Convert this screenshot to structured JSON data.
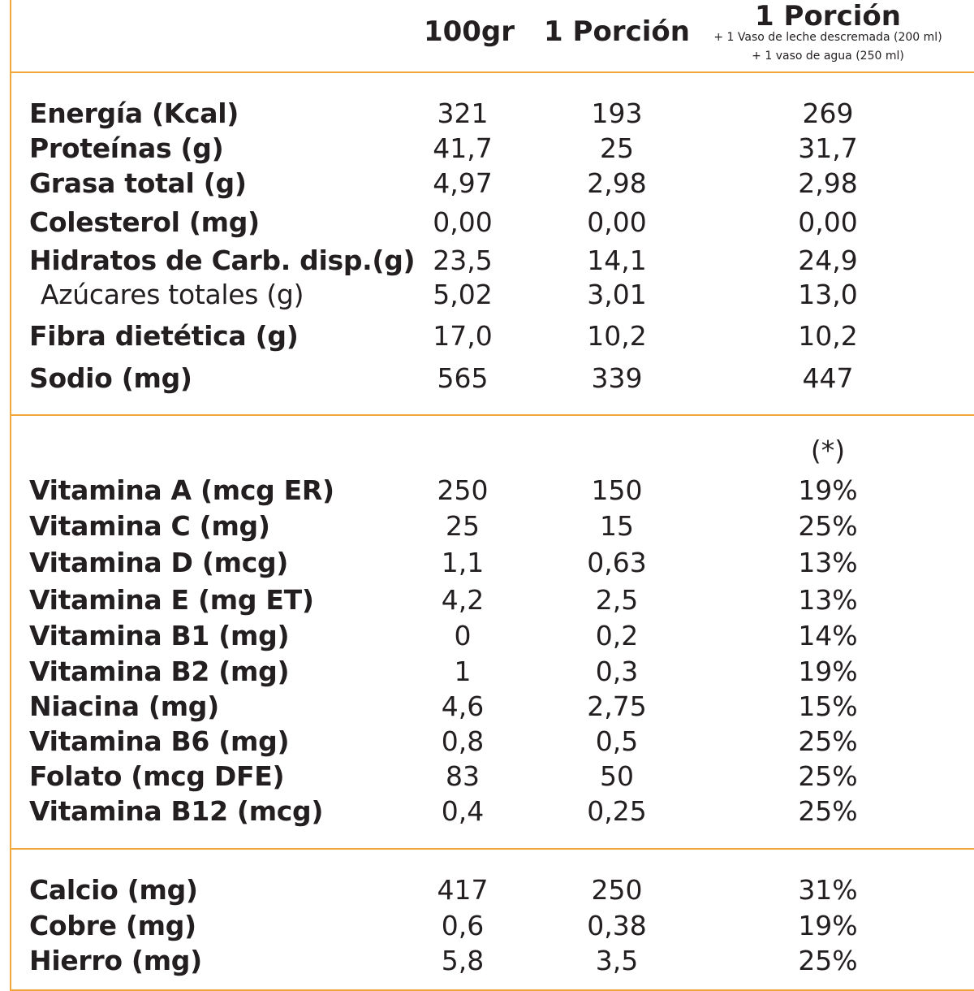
{
  "header": {
    "col1": "100gr",
    "col2": "1 Porción",
    "col3": "1 Porción",
    "col3_note1": "+ 1 Vaso de leche descremada (200 ml)",
    "col3_note2": "+ 1 vaso de agua (250 ml)"
  },
  "colors": {
    "accent": "#f2a73b",
    "text": "#231f20"
  },
  "macros": [
    {
      "label": "Energía (Kcal)",
      "v100": "321",
      "vpor": "193",
      "vmix": "269"
    },
    {
      "label": "Proteínas (g)",
      "v100": "41,7",
      "vpor": "25",
      "vmix": "31,7"
    },
    {
      "label": "Grasa total (g)",
      "v100": "4,97",
      "vpor": "2,98",
      "vmix": "2,98"
    },
    {
      "label": "Colesterol (mg)",
      "v100": "0,00",
      "vpor": "0,00",
      "vmix": "0,00"
    },
    {
      "label": "Hidratos de Carb. disp.(g)",
      "v100": "23,5",
      "vpor": "14,1",
      "vmix": "24,9"
    },
    {
      "label": "Azúcares totales (g)",
      "v100": "5,02",
      "vpor": "3,01",
      "vmix": "13,0"
    },
    {
      "label": "Fibra dietética (g)",
      "v100": "17,0",
      "vpor": "10,2",
      "vmix": "10,2"
    },
    {
      "label": "Sodio (mg)",
      "v100": "565",
      "vpor": "339",
      "vmix": "447"
    }
  ],
  "vitamins_note": "(*)",
  "vitamins": [
    {
      "label": "Vitamina A (mcg ER)",
      "v100": "250",
      "vpor": "150",
      "vmix": "19%"
    },
    {
      "label": "Vitamina C (mg)",
      "v100": "25",
      "vpor": "15",
      "vmix": "25%"
    },
    {
      "label": "Vitamina D (mcg)",
      "v100": "1,1",
      "vpor": "0,63",
      "vmix": "13%"
    },
    {
      "label": "Vitamina E (mg ET)",
      "v100": "4,2",
      "vpor": "2,5",
      "vmix": "13%"
    },
    {
      "label": "Vitamina B1 (mg)",
      "v100": "0",
      "vpor": "0,2",
      "vmix": "14%"
    },
    {
      "label": "Vitamina B2 (mg)",
      "v100": "1",
      "vpor": "0,3",
      "vmix": "19%"
    },
    {
      "label": "Niacina (mg)",
      "v100": "4,6",
      "vpor": "2,75",
      "vmix": "15%"
    },
    {
      "label": "Vitamina B6 (mg)",
      "v100": "0,8",
      "vpor": "0,5",
      "vmix": "25%"
    },
    {
      "label": "Folato (mcg DFE)",
      "v100": "83",
      "vpor": "50",
      "vmix": "25%"
    },
    {
      "label": "Vitamina B12 (mcg)",
      "v100": "0,4",
      "vpor": "0,25",
      "vmix": "25%"
    }
  ],
  "minerals": [
    {
      "label": "Calcio (mg)",
      "v100": "417",
      "vpor": "250",
      "vmix": "31%"
    },
    {
      "label": "Cobre (mg)",
      "v100": "0,6",
      "vpor": "0,38",
      "vmix": "19%"
    },
    {
      "label": "Hierro (mg)",
      "v100": "5,8",
      "vpor": "3,5",
      "vmix": "25%"
    }
  ]
}
